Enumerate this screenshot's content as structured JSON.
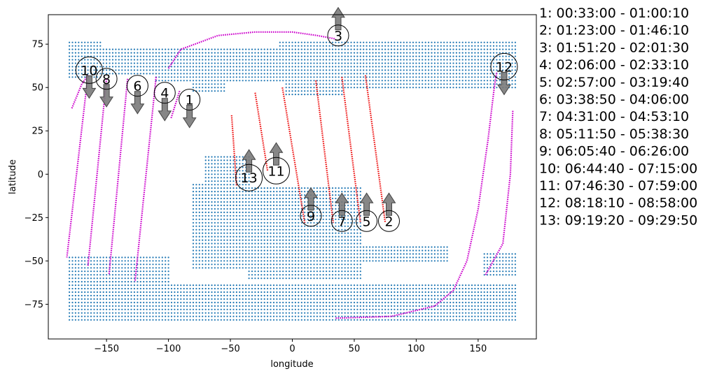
{
  "chart_data": {
    "type": "scatter",
    "title": "",
    "xlabel": "longitude",
    "ylabel": "latitude",
    "xlim": [
      -197,
      197
    ],
    "ylim": [
      -95,
      92
    ],
    "xticks": [
      -150,
      -100,
      -50,
      0,
      50,
      100,
      150
    ],
    "yticks": [
      -75,
      -50,
      -25,
      0,
      25,
      50,
      75
    ],
    "grid": false,
    "colors": {
      "land": "#1f77b4",
      "track_night": "#cc00cc",
      "track_day": "#ee1111",
      "arrow": "#7a7a7a",
      "circle": "#000000"
    },
    "land_regions": [
      {
        "lon": [
          -180,
          -155
        ],
        "lat": [
          55,
          77
        ]
      },
      {
        "lon": [
          -155,
          -100
        ],
        "lat": [
          57,
          73
        ]
      },
      {
        "lon": [
          -110,
          0
        ],
        "lat": [
          54,
          65
        ]
      },
      {
        "lon": [
          -100,
          0
        ],
        "lat": [
          60,
          72
        ]
      },
      {
        "lon": [
          -80,
          -55
        ],
        "lat": [
          47,
          60
        ]
      },
      {
        "lon": [
          -10,
          180
        ],
        "lat": [
          55,
          77
        ]
      },
      {
        "lon": [
          -5,
          40
        ],
        "lat": [
          45,
          60
        ]
      },
      {
        "lon": [
          40,
          180
        ],
        "lat": [
          50,
          70
        ]
      },
      {
        "lon": [
          -80,
          -35
        ],
        "lat": [
          -55,
          -5
        ]
      },
      {
        "lon": [
          -70,
          -35
        ],
        "lat": [
          -5,
          10
        ]
      },
      {
        "lon": [
          -35,
          55
        ],
        "lat": [
          -60,
          -7
        ]
      },
      {
        "lon": [
          50,
          125
        ],
        "lat": [
          -50,
          -41
        ]
      },
      {
        "lon": [
          -180,
          180
        ],
        "lat": [
          -85,
          -64
        ]
      },
      {
        "lon": [
          -180,
          -100
        ],
        "lat": [
          -64,
          -48
        ]
      },
      {
        "lon": [
          155,
          180
        ],
        "lat": [
          -58,
          -45
        ]
      }
    ],
    "tracks": [
      {
        "color": "night",
        "points": [
          [
            -178,
            38
          ],
          [
            -170,
            52
          ],
          [
            -165,
            57
          ]
        ]
      },
      {
        "color": "night",
        "points": [
          [
            -165,
            57
          ],
          [
            -182,
            -48
          ]
        ]
      },
      {
        "color": "night",
        "points": [
          [
            -150,
            55
          ],
          [
            -165,
            -53
          ]
        ]
      },
      {
        "color": "night",
        "points": [
          [
            -133,
            55
          ],
          [
            -148,
            -58
          ]
        ]
      },
      {
        "color": "night",
        "points": [
          [
            -110,
            56
          ],
          [
            -127,
            -62
          ]
        ]
      },
      {
        "color": "night",
        "points": [
          [
            -100,
            61
          ],
          [
            -90,
            72
          ],
          [
            -60,
            80
          ],
          [
            -30,
            82
          ],
          [
            0,
            82
          ],
          [
            20,
            80
          ],
          [
            35,
            78
          ]
        ]
      },
      {
        "color": "night",
        "points": [
          [
            -91,
            48
          ],
          [
            -98,
            32
          ]
        ]
      },
      {
        "color": "day",
        "points": [
          [
            -49,
            34
          ],
          [
            -45,
            -7
          ]
        ]
      },
      {
        "color": "day",
        "points": [
          [
            -30,
            47
          ],
          [
            -20,
            2
          ]
        ]
      },
      {
        "color": "day",
        "points": [
          [
            -8,
            50
          ],
          [
            10,
            -28
          ]
        ]
      },
      {
        "color": "day",
        "points": [
          [
            19,
            54
          ],
          [
            33,
            -28
          ]
        ]
      },
      {
        "color": "day",
        "points": [
          [
            40,
            56
          ],
          [
            55,
            -28
          ]
        ]
      },
      {
        "color": "day",
        "points": [
          [
            59,
            57
          ],
          [
            75,
            -28
          ]
        ]
      },
      {
        "color": "night",
        "points": [
          [
            35,
            -83
          ],
          [
            80,
            -82
          ],
          [
            115,
            -76
          ],
          [
            130,
            -67
          ],
          [
            141,
            -50
          ],
          [
            150,
            -20
          ],
          [
            158,
            20
          ],
          [
            163,
            50
          ],
          [
            165,
            59
          ]
        ]
      },
      {
        "color": "night",
        "points": [
          [
            156,
            -58
          ],
          [
            170,
            -40
          ],
          [
            176,
            0
          ],
          [
            178,
            37
          ]
        ]
      }
    ],
    "passes": [
      {
        "label": "1",
        "lon": -83,
        "lat": 43,
        "dir": "down"
      },
      {
        "label": "2",
        "lon": 78,
        "lat": -27,
        "dir": "up"
      },
      {
        "label": "3",
        "lon": 37,
        "lat": 80,
        "dir": "up"
      },
      {
        "label": "4",
        "lon": -103,
        "lat": 47,
        "dir": "down"
      },
      {
        "label": "5",
        "lon": 60,
        "lat": -27,
        "dir": "up"
      },
      {
        "label": "6",
        "lon": -125,
        "lat": 51,
        "dir": "down"
      },
      {
        "label": "7",
        "lon": 40,
        "lat": -27,
        "dir": "up"
      },
      {
        "label": "8",
        "lon": -150,
        "lat": 55,
        "dir": "down"
      },
      {
        "label": "9",
        "lon": 15,
        "lat": -24,
        "dir": "up"
      },
      {
        "label": "10",
        "lon": -164,
        "lat": 60,
        "dir": "down"
      },
      {
        "label": "11",
        "lon": -13,
        "lat": 2,
        "dir": "up"
      },
      {
        "label": "12",
        "lon": 171,
        "lat": 62,
        "dir": "down"
      },
      {
        "label": "13",
        "lon": -35,
        "lat": -2,
        "dir": "up"
      }
    ],
    "legend": [
      "1:  00:33:00 - 01:00:10",
      "2:  01:23:00 - 01:46:10",
      "3:  01:51:20 - 02:01:30",
      "4:  02:06:00 - 02:33:10",
      "5:  02:57:00 - 03:19:40",
      "6:  03:38:50 - 04:06:00",
      "7:  04:31:00 - 04:53:10",
      "8:  05:11:50 - 05:38:30",
      "9:  06:05:40 - 06:26:00",
      "10:  06:44:40 - 07:15:00",
      "11:  07:46:30 - 07:59:00",
      "12:  08:18:10 - 08:58:00",
      "13:  09:19:20 - 09:29:50"
    ]
  }
}
